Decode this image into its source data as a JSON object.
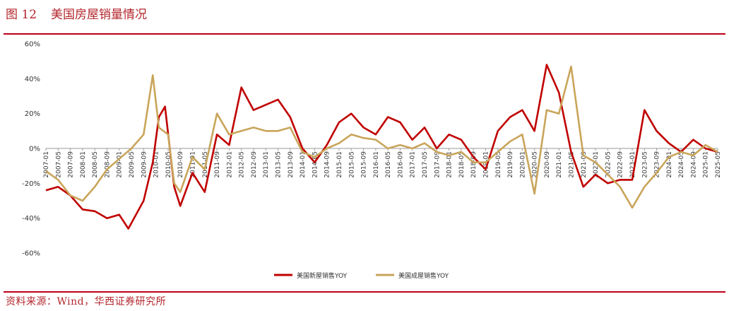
{
  "header": {
    "figure_number": "图 12",
    "title": "美国房屋销量情况"
  },
  "footer": {
    "source": "资料来源：Wind，华西证券研究所"
  },
  "chart_data": {
    "type": "line",
    "ylim": [
      -60,
      60
    ],
    "y_ticks": [
      "60%",
      "40%",
      "20%",
      "0%",
      "-20%",
      "-40%",
      "-60%"
    ],
    "x_start": "2007-01",
    "x_end": "2025-05",
    "x_tick_labels": [
      "2007-01",
      "2007-05",
      "2007-09",
      "2008-01",
      "2008-05",
      "2008-09",
      "2009-01",
      "2009-05",
      "2009-09",
      "2010-01",
      "2010-05",
      "2010-09",
      "2011-01",
      "2011-05",
      "2011-09",
      "2012-01",
      "2012-05",
      "2012-09",
      "2013-01",
      "2013-05",
      "2013-09",
      "2014-01",
      "2014-05",
      "2014-09",
      "2015-01",
      "2015-05",
      "2015-09",
      "2016-01",
      "2016-05",
      "2016-09",
      "2017-01",
      "2017-05",
      "2017-09",
      "2018-01",
      "2018-05",
      "2018-09",
      "2019-01",
      "2019-05",
      "2019-09",
      "2020-01",
      "2020-05",
      "2020-09",
      "2021-01",
      "2021-05",
      "2021-09",
      "2022-01",
      "2022-05",
      "2022-09",
      "2023-01",
      "2023-05",
      "2023-09",
      "2024-01",
      "2024-05",
      "2024-09",
      "2025-01",
      "2025-05"
    ],
    "legend_position": "bottom",
    "series": [
      {
        "name": "美国新屋销售YOY",
        "color": "#c00000",
        "points": [
          [
            "2007-01",
            -24
          ],
          [
            "2007-05",
            -22
          ],
          [
            "2007-09",
            -27
          ],
          [
            "2008-01",
            -35
          ],
          [
            "2008-05",
            -36
          ],
          [
            "2008-09",
            -40
          ],
          [
            "2009-01",
            -38
          ],
          [
            "2009-04",
            -46
          ],
          [
            "2009-09",
            -30
          ],
          [
            "2009-12",
            -8
          ],
          [
            "2010-02",
            18
          ],
          [
            "2010-04",
            24
          ],
          [
            "2010-07",
            -22
          ],
          [
            "2010-09",
            -33
          ],
          [
            "2011-01",
            -14
          ],
          [
            "2011-05",
            -25
          ],
          [
            "2011-09",
            8
          ],
          [
            "2012-01",
            2
          ],
          [
            "2012-05",
            35
          ],
          [
            "2012-09",
            22
          ],
          [
            "2013-01",
            25
          ],
          [
            "2013-05",
            28
          ],
          [
            "2013-09",
            18
          ],
          [
            "2014-01",
            0
          ],
          [
            "2014-05",
            -8
          ],
          [
            "2014-09",
            2
          ],
          [
            "2015-01",
            15
          ],
          [
            "2015-05",
            20
          ],
          [
            "2015-09",
            12
          ],
          [
            "2016-01",
            8
          ],
          [
            "2016-05",
            18
          ],
          [
            "2016-09",
            15
          ],
          [
            "2017-01",
            5
          ],
          [
            "2017-05",
            12
          ],
          [
            "2017-09",
            0
          ],
          [
            "2018-01",
            8
          ],
          [
            "2018-05",
            5
          ],
          [
            "2018-09",
            -5
          ],
          [
            "2019-01",
            -12
          ],
          [
            "2019-05",
            10
          ],
          [
            "2019-09",
            18
          ],
          [
            "2020-01",
            22
          ],
          [
            "2020-05",
            10
          ],
          [
            "2020-09",
            48
          ],
          [
            "2021-01",
            32
          ],
          [
            "2021-05",
            -2
          ],
          [
            "2021-09",
            -22
          ],
          [
            "2022-01",
            -15
          ],
          [
            "2022-05",
            -20
          ],
          [
            "2022-09",
            -18
          ],
          [
            "2023-01",
            -18
          ],
          [
            "2023-05",
            22
          ],
          [
            "2023-09",
            10
          ],
          [
            "2024-01",
            3
          ],
          [
            "2024-05",
            -2
          ],
          [
            "2024-09",
            5
          ],
          [
            "2025-01",
            0
          ],
          [
            "2025-05",
            -2
          ]
        ]
      },
      {
        "name": "美国成屋销售YOY",
        "color": "#c9a55a",
        "points": [
          [
            "2007-01",
            -13
          ],
          [
            "2007-05",
            -18
          ],
          [
            "2007-09",
            -27
          ],
          [
            "2008-01",
            -30
          ],
          [
            "2008-05",
            -22
          ],
          [
            "2008-09",
            -12
          ],
          [
            "2009-01",
            -6
          ],
          [
            "2009-05",
            0
          ],
          [
            "2009-09",
            8
          ],
          [
            "2009-12",
            42
          ],
          [
            "2010-02",
            12
          ],
          [
            "2010-05",
            8
          ],
          [
            "2010-07",
            -20
          ],
          [
            "2010-09",
            -25
          ],
          [
            "2011-01",
            -5
          ],
          [
            "2011-05",
            -12
          ],
          [
            "2011-09",
            20
          ],
          [
            "2012-01",
            8
          ],
          [
            "2012-05",
            10
          ],
          [
            "2012-09",
            12
          ],
          [
            "2013-01",
            10
          ],
          [
            "2013-05",
            10
          ],
          [
            "2013-09",
            12
          ],
          [
            "2014-01",
            -2
          ],
          [
            "2014-05",
            -5
          ],
          [
            "2014-09",
            0
          ],
          [
            "2015-01",
            3
          ],
          [
            "2015-05",
            8
          ],
          [
            "2015-09",
            6
          ],
          [
            "2016-01",
            5
          ],
          [
            "2016-05",
            0
          ],
          [
            "2016-09",
            2
          ],
          [
            "2017-01",
            0
          ],
          [
            "2017-05",
            3
          ],
          [
            "2017-09",
            -2
          ],
          [
            "2018-01",
            -4
          ],
          [
            "2018-05",
            -2
          ],
          [
            "2018-09",
            -8
          ],
          [
            "2019-01",
            -8
          ],
          [
            "2019-05",
            -2
          ],
          [
            "2019-09",
            4
          ],
          [
            "2020-01",
            8
          ],
          [
            "2020-05",
            -26
          ],
          [
            "2020-09",
            22
          ],
          [
            "2021-01",
            20
          ],
          [
            "2021-05",
            47
          ],
          [
            "2021-09",
            -4
          ],
          [
            "2022-01",
            -8
          ],
          [
            "2022-05",
            -15
          ],
          [
            "2022-09",
            -22
          ],
          [
            "2023-01",
            -34
          ],
          [
            "2023-05",
            -22
          ],
          [
            "2023-09",
            -14
          ],
          [
            "2024-01",
            -5
          ],
          [
            "2024-05",
            -2
          ],
          [
            "2024-09",
            -4
          ],
          [
            "2025-01",
            2
          ],
          [
            "2025-05",
            -2
          ]
        ]
      }
    ]
  }
}
